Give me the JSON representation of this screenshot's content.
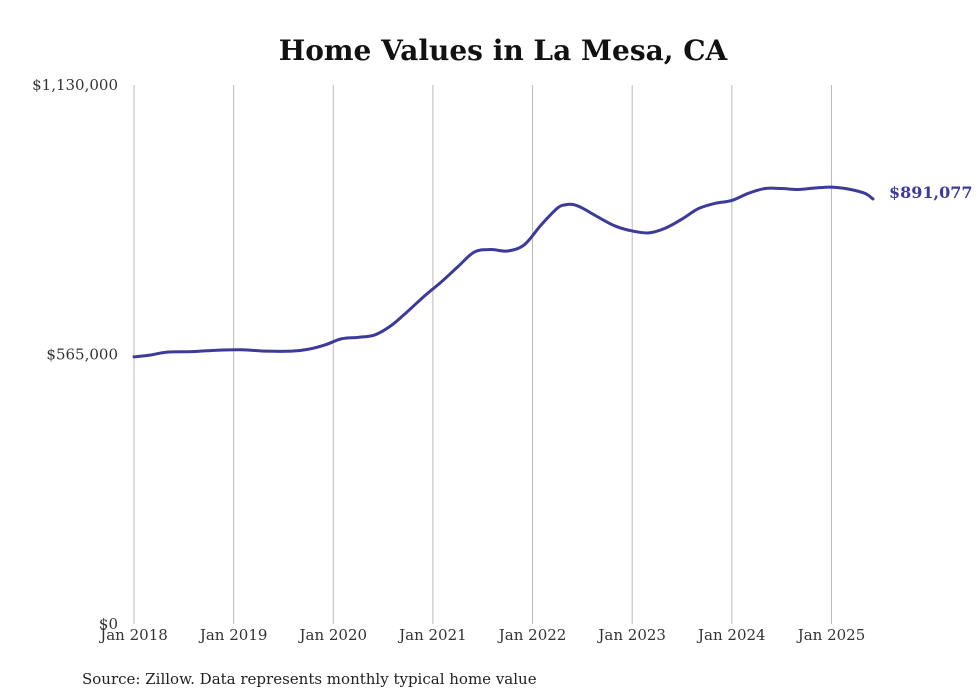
{
  "chart_data": {
    "type": "line",
    "title": "Home Values in La Mesa, CA",
    "xlabel": "",
    "ylabel": "",
    "x_ticks": [
      "Jan 2018",
      "Jan 2019",
      "Jan 2020",
      "Jan 2021",
      "Jan 2022",
      "Jan 2023",
      "Jan 2024",
      "Jan 2025"
    ],
    "y_ticks": [
      "$0",
      "$565,000",
      "$1,130,000"
    ],
    "ylim": [
      0,
      1130000
    ],
    "xlim": [
      "2018-01",
      "2025-06"
    ],
    "grid": "vertical",
    "line_color": "#3c3a9a",
    "end_label": "$891,077",
    "series": [
      {
        "x": [
          "2018-01",
          "2018-03",
          "2018-05",
          "2018-08",
          "2018-11",
          "2019-02",
          "2019-05",
          "2019-08",
          "2019-10",
          "2019-12",
          "2020-02",
          "2020-04",
          "2020-06",
          "2020-08",
          "2020-10",
          "2020-12",
          "2021-02",
          "2021-04",
          "2021-06",
          "2021-08",
          "2021-10",
          "2021-12",
          "2022-02",
          "2022-04",
          "2022-05",
          "2022-06",
          "2022-07",
          "2022-09",
          "2022-11",
          "2023-01",
          "2023-03",
          "2023-05",
          "2023-07",
          "2023-09",
          "2023-11",
          "2024-01",
          "2024-03",
          "2024-05",
          "2024-07",
          "2024-09",
          "2024-11",
          "2025-01",
          "2025-03",
          "2025-05",
          "2025-06"
        ],
        "values": [
          560000,
          564000,
          570000,
          571000,
          574000,
          575000,
          572000,
          572000,
          576000,
          585000,
          598000,
          601000,
          606000,
          626000,
          656000,
          688000,
          717000,
          749000,
          780000,
          785000,
          782000,
          795000,
          836000,
          872000,
          879000,
          879000,
          872000,
          852000,
          834000,
          824000,
          820000,
          830000,
          849000,
          871000,
          882000,
          888000,
          903000,
          913000,
          913000,
          911000,
          914000,
          916000,
          912000,
          903000,
          891077
        ]
      }
    ]
  },
  "source_note": "Source: Zillow. Data represents monthly typical home value"
}
